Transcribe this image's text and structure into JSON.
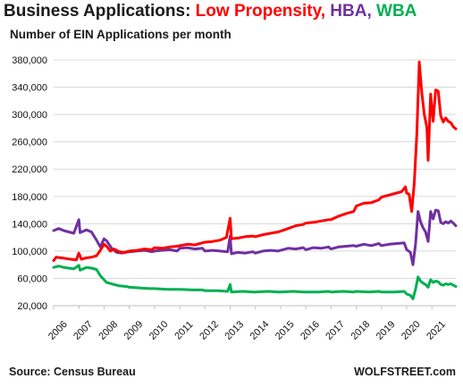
{
  "title": {
    "prefix": "Business Applications:",
    "parts": [
      {
        "text": "Low Propensity,",
        "color": "#ff0000"
      },
      {
        "text": "HBA,",
        "color": "#7030a0"
      },
      {
        "text": "WBA",
        "color": "#00b050"
      }
    ]
  },
  "subtitle": "Number of EIN Applications per month",
  "source": "Source: Census Bureau",
  "brand": "WOLFSTREET.com",
  "chart_data": {
    "type": "line",
    "title": "Business Applications: Low Propensity, HBA, WBA",
    "subtitle": "Number of EIN Applications per month",
    "ylim": [
      20000,
      380000
    ],
    "yticks": [
      20000,
      60000,
      100000,
      140000,
      180000,
      220000,
      260000,
      300000,
      340000,
      380000
    ],
    "ytick_labels": [
      "20,000",
      "60,000",
      "100,000",
      "140,000",
      "180,000",
      "220,000",
      "260,000",
      "300,000",
      "340,000",
      "380,000"
    ],
    "x_labels": [
      "2006",
      "2007",
      "2008",
      "2009",
      "2010",
      "2011",
      "2012",
      "2013",
      "2014",
      "2015",
      "2016",
      "2017",
      "2018",
      "2019",
      "2020",
      "2021"
    ],
    "xlim": [
      2006.0,
      2021.95
    ],
    "grid": "horizontal",
    "series": [
      {
        "name": "Low Propensity",
        "color": "#ff0000",
        "points": [
          [
            2006.0,
            86000
          ],
          [
            2006.1,
            91000
          ],
          [
            2006.3,
            90000
          ],
          [
            2006.5,
            89000
          ],
          [
            2006.7,
            88000
          ],
          [
            2006.9,
            87000
          ],
          [
            2007.0,
            97000
          ],
          [
            2007.1,
            88000
          ],
          [
            2007.3,
            90000
          ],
          [
            2007.5,
            91000
          ],
          [
            2007.7,
            93000
          ],
          [
            2007.85,
            101000
          ],
          [
            2008.0,
            110000
          ],
          [
            2008.1,
            107000
          ],
          [
            2008.25,
            100000
          ],
          [
            2008.4,
            103000
          ],
          [
            2008.6,
            99000
          ],
          [
            2008.8,
            98000
          ],
          [
            2009.0,
            100000
          ],
          [
            2009.3,
            101000
          ],
          [
            2009.6,
            103000
          ],
          [
            2009.9,
            102000
          ],
          [
            2010.0,
            105000
          ],
          [
            2010.3,
            104000
          ],
          [
            2010.6,
            106000
          ],
          [
            2010.9,
            107000
          ],
          [
            2011.0,
            108000
          ],
          [
            2011.3,
            110000
          ],
          [
            2011.6,
            109000
          ],
          [
            2011.9,
            112000
          ],
          [
            2012.0,
            113000
          ],
          [
            2012.3,
            114000
          ],
          [
            2012.6,
            116000
          ],
          [
            2012.85,
            120000
          ],
          [
            2013.0,
            148000
          ],
          [
            2013.05,
            118000
          ],
          [
            2013.3,
            119000
          ],
          [
            2013.6,
            121000
          ],
          [
            2013.9,
            122000
          ],
          [
            2014.0,
            121000
          ],
          [
            2014.3,
            124000
          ],
          [
            2014.6,
            126000
          ],
          [
            2014.9,
            128000
          ],
          [
            2015.0,
            129000
          ],
          [
            2015.3,
            133000
          ],
          [
            2015.6,
            137000
          ],
          [
            2015.9,
            139000
          ],
          [
            2016.0,
            141000
          ],
          [
            2016.3,
            142000
          ],
          [
            2016.6,
            144000
          ],
          [
            2016.9,
            146000
          ],
          [
            2017.0,
            146000
          ],
          [
            2017.3,
            151000
          ],
          [
            2017.6,
            155000
          ],
          [
            2017.9,
            158000
          ],
          [
            2018.0,
            166000
          ],
          [
            2018.3,
            170000
          ],
          [
            2018.6,
            171000
          ],
          [
            2018.9,
            175000
          ],
          [
            2019.0,
            179000
          ],
          [
            2019.3,
            182000
          ],
          [
            2019.6,
            185000
          ],
          [
            2019.8,
            187000
          ],
          [
            2019.95,
            194000
          ],
          [
            2020.0,
            185000
          ],
          [
            2020.1,
            183000
          ],
          [
            2020.2,
            158000
          ],
          [
            2020.3,
            198000
          ],
          [
            2020.4,
            270000
          ],
          [
            2020.5,
            377000
          ],
          [
            2020.6,
            332000
          ],
          [
            2020.7,
            300000
          ],
          [
            2020.8,
            281000
          ],
          [
            2020.85,
            233000
          ],
          [
            2020.95,
            330000
          ],
          [
            2021.05,
            290000
          ],
          [
            2021.15,
            336000
          ],
          [
            2021.25,
            334000
          ],
          [
            2021.35,
            298000
          ],
          [
            2021.45,
            289000
          ],
          [
            2021.55,
            295000
          ],
          [
            2021.65,
            290000
          ],
          [
            2021.75,
            288000
          ],
          [
            2021.85,
            282000
          ],
          [
            2021.95,
            279000
          ]
        ]
      },
      {
        "name": "HBA",
        "color": "#7030a0",
        "points": [
          [
            2006.0,
            130000
          ],
          [
            2006.2,
            133000
          ],
          [
            2006.4,
            130000
          ],
          [
            2006.6,
            128000
          ],
          [
            2006.8,
            126000
          ],
          [
            2007.0,
            146000
          ],
          [
            2007.05,
            127000
          ],
          [
            2007.3,
            131000
          ],
          [
            2007.5,
            128000
          ],
          [
            2007.7,
            116000
          ],
          [
            2007.85,
            106000
          ],
          [
            2008.0,
            118000
          ],
          [
            2008.1,
            115000
          ],
          [
            2008.3,
            104000
          ],
          [
            2008.5,
            98000
          ],
          [
            2008.7,
            97000
          ],
          [
            2009.0,
            99000
          ],
          [
            2009.3,
            100000
          ],
          [
            2009.6,
            101000
          ],
          [
            2009.9,
            99000
          ],
          [
            2010.0,
            100000
          ],
          [
            2010.3,
            101000
          ],
          [
            2010.6,
            102000
          ],
          [
            2010.9,
            100000
          ],
          [
            2011.0,
            104000
          ],
          [
            2011.3,
            105000
          ],
          [
            2011.6,
            103000
          ],
          [
            2011.9,
            104000
          ],
          [
            2012.0,
            100000
          ],
          [
            2012.3,
            101000
          ],
          [
            2012.6,
            100000
          ],
          [
            2012.9,
            99000
          ],
          [
            2013.0,
            122000
          ],
          [
            2013.05,
            96000
          ],
          [
            2013.3,
            98000
          ],
          [
            2013.6,
            97000
          ],
          [
            2013.9,
            99000
          ],
          [
            2014.0,
            97000
          ],
          [
            2014.3,
            100000
          ],
          [
            2014.6,
            101000
          ],
          [
            2014.9,
            100000
          ],
          [
            2015.0,
            101000
          ],
          [
            2015.3,
            104000
          ],
          [
            2015.6,
            103000
          ],
          [
            2015.9,
            105000
          ],
          [
            2016.0,
            102000
          ],
          [
            2016.3,
            105000
          ],
          [
            2016.6,
            104000
          ],
          [
            2016.9,
            106000
          ],
          [
            2017.0,
            103000
          ],
          [
            2017.3,
            106000
          ],
          [
            2017.6,
            107000
          ],
          [
            2017.9,
            108000
          ],
          [
            2018.0,
            107000
          ],
          [
            2018.3,
            110000
          ],
          [
            2018.6,
            108000
          ],
          [
            2018.9,
            111000
          ],
          [
            2019.0,
            108000
          ],
          [
            2019.3,
            110000
          ],
          [
            2019.6,
            111000
          ],
          [
            2019.9,
            112000
          ],
          [
            2020.0,
            102000
          ],
          [
            2020.15,
            98000
          ],
          [
            2020.25,
            80000
          ],
          [
            2020.35,
            110000
          ],
          [
            2020.45,
            158000
          ],
          [
            2020.55,
            143000
          ],
          [
            2020.65,
            134000
          ],
          [
            2020.75,
            128000
          ],
          [
            2020.85,
            114000
          ],
          [
            2020.95,
            158000
          ],
          [
            2021.05,
            147000
          ],
          [
            2021.15,
            160000
          ],
          [
            2021.25,
            159000
          ],
          [
            2021.35,
            142000
          ],
          [
            2021.45,
            140000
          ],
          [
            2021.55,
            143000
          ],
          [
            2021.65,
            141000
          ],
          [
            2021.75,
            144000
          ],
          [
            2021.85,
            141000
          ],
          [
            2021.95,
            137000
          ]
        ]
      },
      {
        "name": "WBA",
        "color": "#00b050",
        "points": [
          [
            2006.0,
            76000
          ],
          [
            2006.2,
            78000
          ],
          [
            2006.4,
            76000
          ],
          [
            2006.6,
            75000
          ],
          [
            2006.8,
            74000
          ],
          [
            2007.0,
            79000
          ],
          [
            2007.05,
            72000
          ],
          [
            2007.3,
            76000
          ],
          [
            2007.5,
            75000
          ],
          [
            2007.7,
            73000
          ],
          [
            2007.85,
            64000
          ],
          [
            2008.0,
            58000
          ],
          [
            2008.1,
            54000
          ],
          [
            2008.3,
            52000
          ],
          [
            2008.6,
            49000
          ],
          [
            2008.9,
            48000
          ],
          [
            2009.0,
            47000
          ],
          [
            2009.4,
            46000
          ],
          [
            2009.8,
            45000
          ],
          [
            2010.0,
            45000
          ],
          [
            2010.5,
            44000
          ],
          [
            2010.9,
            44000
          ],
          [
            2011.0,
            44000
          ],
          [
            2011.5,
            43000
          ],
          [
            2011.9,
            43000
          ],
          [
            2012.0,
            42000
          ],
          [
            2012.5,
            42000
          ],
          [
            2012.9,
            41000
          ],
          [
            2013.0,
            51000
          ],
          [
            2013.05,
            40000
          ],
          [
            2013.5,
            41000
          ],
          [
            2013.9,
            40000
          ],
          [
            2014.0,
            40000
          ],
          [
            2014.5,
            41000
          ],
          [
            2014.9,
            40000
          ],
          [
            2015.0,
            40000
          ],
          [
            2015.5,
            41000
          ],
          [
            2015.9,
            40000
          ],
          [
            2016.0,
            40000
          ],
          [
            2016.5,
            40000
          ],
          [
            2016.9,
            41000
          ],
          [
            2017.0,
            40000
          ],
          [
            2017.5,
            41000
          ],
          [
            2017.9,
            40000
          ],
          [
            2018.0,
            41000
          ],
          [
            2018.5,
            40000
          ],
          [
            2018.9,
            41000
          ],
          [
            2019.0,
            40000
          ],
          [
            2019.5,
            40000
          ],
          [
            2019.9,
            41000
          ],
          [
            2020.0,
            37000
          ],
          [
            2020.15,
            35000
          ],
          [
            2020.25,
            30000
          ],
          [
            2020.35,
            44000
          ],
          [
            2020.45,
            62000
          ],
          [
            2020.55,
            56000
          ],
          [
            2020.65,
            53000
          ],
          [
            2020.75,
            51000
          ],
          [
            2020.85,
            47000
          ],
          [
            2020.95,
            58000
          ],
          [
            2021.05,
            54000
          ],
          [
            2021.15,
            56000
          ],
          [
            2021.25,
            55000
          ],
          [
            2021.35,
            51000
          ],
          [
            2021.45,
            50000
          ],
          [
            2021.55,
            52000
          ],
          [
            2021.65,
            51000
          ],
          [
            2021.75,
            52000
          ],
          [
            2021.85,
            50000
          ],
          [
            2021.95,
            48000
          ]
        ]
      }
    ]
  }
}
